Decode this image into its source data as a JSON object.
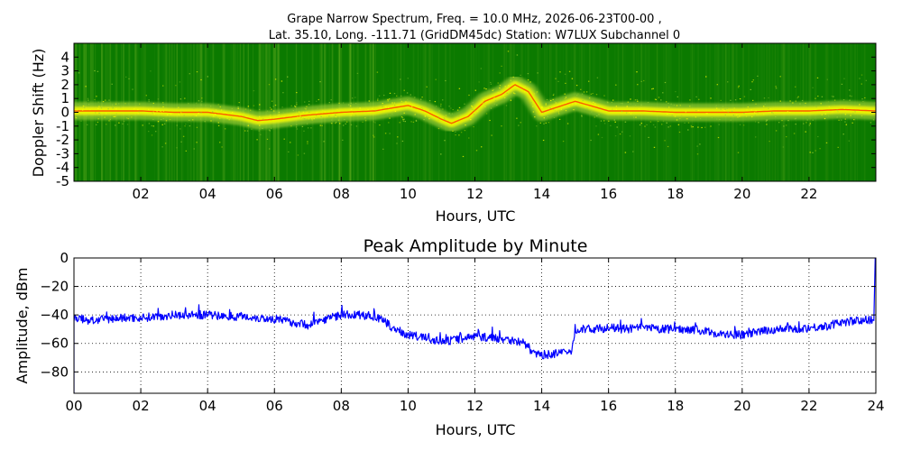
{
  "chart_data": [
    {
      "type": "heatmap",
      "title_line1": "Grape Narrow Spectrum, Freq. = 10.0 MHz, 2026-06-23T00-00 ,",
      "title_line2": "Lat.  35.10, Long. -111.71 (GridDM45dc) Station: W7LUX Subchannel 0",
      "xlabel": "Hours, UTC",
      "ylabel": "Doppler Shift (Hz)",
      "xlim": [
        0,
        24
      ],
      "ylim": [
        -5,
        5
      ],
      "x_tick_labels": [
        "02",
        "04",
        "06",
        "08",
        "10",
        "12",
        "14",
        "16",
        "18",
        "20",
        "22"
      ],
      "x_ticks": [
        2,
        4,
        6,
        8,
        10,
        12,
        14,
        16,
        18,
        20,
        22
      ],
      "y_ticks": [
        4,
        3,
        2,
        1,
        0,
        -1,
        -2,
        -3,
        -4,
        -5
      ],
      "y_tick_labels": [
        "4",
        "3",
        "2",
        "1",
        "0",
        "-1",
        "-2",
        "-3",
        "-4",
        "-5"
      ],
      "colors": {
        "background": "#0b7a00",
        "mid": "#9acd32",
        "high": "#ffff00",
        "peak": "#ff2a00"
      },
      "doppler_trace": {
        "hours": [
          0,
          1,
          2,
          3,
          4,
          5,
          5.5,
          6,
          7,
          8,
          9,
          9.5,
          10,
          10.5,
          11,
          11.3,
          11.8,
          12.3,
          12.8,
          13.2,
          13.6,
          14,
          15,
          16,
          17,
          18,
          19,
          20,
          21,
          22,
          23,
          24
        ],
        "shift_hz": [
          0.1,
          0.1,
          0.1,
          0.0,
          0.0,
          -0.3,
          -0.6,
          -0.5,
          -0.2,
          0.0,
          0.1,
          0.3,
          0.5,
          0.1,
          -0.5,
          -0.8,
          -0.3,
          0.8,
          1.3,
          2.0,
          1.5,
          0.0,
          0.8,
          0.1,
          0.1,
          0.0,
          0.0,
          0.0,
          0.1,
          0.1,
          0.2,
          0.1
        ]
      }
    },
    {
      "type": "line",
      "title": "Peak Amplitude by Minute",
      "xlabel": "Hours, UTC",
      "ylabel": "Amplitude, dBm",
      "xlim": [
        0,
        24
      ],
      "ylim": [
        -95,
        0
      ],
      "x_ticks": [
        0,
        2,
        4,
        6,
        8,
        10,
        12,
        14,
        16,
        18,
        20,
        22,
        24
      ],
      "x_tick_labels": [
        "00",
        "02",
        "04",
        "06",
        "08",
        "10",
        "12",
        "14",
        "16",
        "18",
        "20",
        "22",
        "24"
      ],
      "y_ticks": [
        0,
        -20,
        -40,
        -60,
        -80
      ],
      "y_tick_labels": [
        "0",
        "−20",
        "−40",
        "−60",
        "−80"
      ],
      "grid": true,
      "series": [
        {
          "color": "#0000ff",
          "hours": [
            0,
            0.5,
            1,
            1.5,
            2,
            2.5,
            3,
            3.5,
            4,
            4.5,
            5,
            5.5,
            6,
            6.5,
            7,
            7.5,
            8,
            8.5,
            9,
            9.3,
            9.6,
            10,
            10.5,
            11,
            11.5,
            12,
            12.5,
            13,
            13.5,
            13.8,
            14,
            14.5,
            14.9,
            15,
            15.5,
            16,
            16.5,
            17,
            17.5,
            18,
            18.5,
            19,
            19.5,
            20,
            20.5,
            21,
            21.5,
            22,
            22.5,
            23,
            23.5,
            23.95
          ],
          "dbm": [
            -42,
            -44,
            -43,
            -42,
            -42,
            -41,
            -40,
            -40,
            -40,
            -41,
            -41,
            -42,
            -43,
            -45,
            -47,
            -43,
            -40,
            -40,
            -41,
            -45,
            -50,
            -54,
            -56,
            -59,
            -57,
            -55,
            -56,
            -57,
            -60,
            -68,
            -68,
            -67,
            -66,
            -50,
            -50,
            -49,
            -50,
            -49,
            -50,
            -50,
            -50,
            -52,
            -54,
            -54,
            -52,
            -50,
            -50,
            -49,
            -48,
            -45,
            -44,
            -43
          ],
          "noise_db": 3,
          "end_spike_dbm": 0
        }
      ]
    }
  ]
}
